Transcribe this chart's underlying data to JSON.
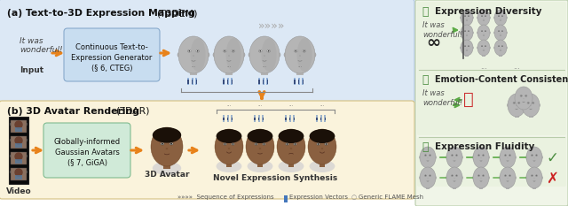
{
  "fig_width": 6.4,
  "fig_height": 2.33,
  "dpi": 100,
  "bg_color": "#ffffff",
  "panel_a_bg": "#dce8f5",
  "panel_b_bg": "#faf3dc",
  "panel_a_box_bg": "#c8ddf0",
  "panel_b_box_bg": "#d0ead8",
  "panel_a_title_bold": "(a) Text-to-3D Expression Mapping ",
  "panel_a_title_normal": "(T3DEM)",
  "panel_b_title_bold": "(b) 3D Avatar Rendering ",
  "panel_b_title_normal": "(3DAR)",
  "panel_a_box_text": "Continuous Text-to-\nExpression Generator\n(§ 6, CTEG)",
  "panel_b_box_text": "Globally-informed\nGaussian Avatars\n(§ 7, GiGA)",
  "input_italic": "It was\nwonderful!",
  "input_label": "Input",
  "video_label": "Video",
  "avatar_label": "3D Avatar",
  "novel_label": "Novel Expression Synthesis",
  "legend_seq": "»»»»  Sequence of Expressions",
  "legend_vec": "Expression Vectors",
  "legend_mesh": "Generic FLAME Mesh",
  "right_title1": "Expression Diversity",
  "right_title2": "Emotion-Content Consistency",
  "right_title3": "Expression Fluidity",
  "right_bg": "#e8f0e0",
  "right_section_bg": "#edf4e4",
  "arrow_color": "#e8821a",
  "green_arrow": "#5aaa44",
  "green_color": "#4a8c3f",
  "red_color": "#cc2222",
  "face_gray": "#b8b8b8",
  "face_dark": "#8a6040",
  "bar_blue": "#4477bb",
  "bar_dark": "#223366"
}
